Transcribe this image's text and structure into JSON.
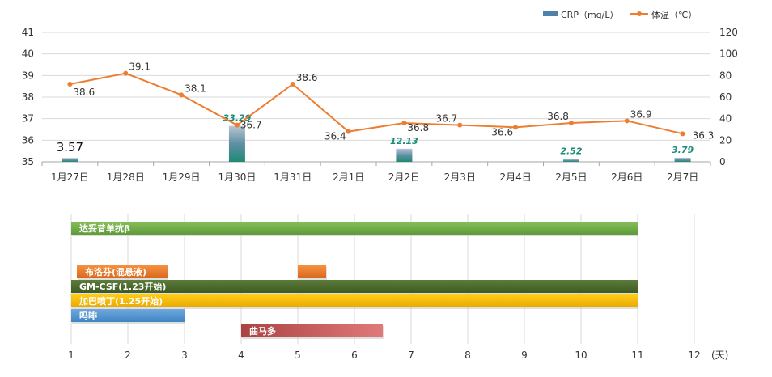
{
  "chart_data": [
    {
      "type": "bar+line",
      "legend": {
        "placement": "top-right",
        "items": [
          {
            "name": "CRP（mg/L）",
            "kind": "bar"
          },
          {
            "name": "体温（℃）",
            "kind": "line"
          }
        ]
      },
      "categories": [
        "1月27日",
        "1月28日",
        "1月29日",
        "1月30日",
        "1月31日",
        "2月1日",
        "2月2日",
        "2月3日",
        "2月4日",
        "2月5日",
        "2月6日",
        "2月7日"
      ],
      "series": [
        {
          "name": "体温（℃）",
          "type": "line",
          "axis": "left",
          "color": "#ed7d31",
          "values": [
            38.6,
            39.1,
            38.1,
            36.7,
            38.6,
            36.4,
            36.8,
            36.7,
            36.6,
            36.8,
            36.9,
            36.3
          ]
        },
        {
          "name": "CRP（mg/L）",
          "type": "bar",
          "axis": "right",
          "color": "#4f81a9",
          "values": [
            3.57,
            null,
            null,
            33.29,
            null,
            null,
            12.13,
            null,
            null,
            2.52,
            null,
            3.79
          ]
        }
      ],
      "left_axis": {
        "ylim": [
          35,
          41
        ],
        "ticks": [
          "35",
          "36",
          "37",
          "38",
          "39",
          "40",
          "41"
        ]
      },
      "right_axis": {
        "ylim": [
          0,
          120
        ],
        "ticks": [
          "0",
          "20",
          "40",
          "60",
          "80",
          "100",
          "120"
        ]
      },
      "temp_labels": [
        "38.6",
        "39.1",
        "38.1",
        "36.7",
        "38.6",
        "36.4",
        "36.8",
        "36.7",
        "36.6",
        "36.8",
        "36.9",
        "36.3"
      ],
      "crp_labels": [
        "3.57",
        "",
        "",
        "33.29",
        "",
        "",
        "12.13",
        "",
        "",
        "2.52",
        "",
        "3.79"
      ],
      "grid": true
    },
    {
      "type": "gantt",
      "x_axis": {
        "min": 1,
        "max": 12,
        "ticks": [
          "1",
          "2",
          "3",
          "4",
          "5",
          "6",
          "7",
          "8",
          "9",
          "10",
          "11",
          "12"
        ],
        "unit": "(天)"
      },
      "tasks": [
        {
          "label": "达妥昔单抗β",
          "start": 1,
          "end": 11,
          "color": "#70ad47"
        },
        {
          "label": "布洛芬(混悬液)",
          "start": 1.1,
          "end": 2.7,
          "color": "#ed7d31"
        },
        {
          "label": "",
          "start": 5,
          "end": 5.5,
          "color": "#ed7d31"
        },
        {
          "label": "GM-CSF(1.23开始)",
          "start": 1,
          "end": 11,
          "color": "#4a6b2c"
        },
        {
          "label": "加巴喷丁(1.25开始)",
          "start": 1,
          "end": 11,
          "color": "#ffc000"
        },
        {
          "label": "吗啡",
          "start": 1,
          "end": 3,
          "color": "#5b9bd5"
        },
        {
          "label": "曲马多",
          "start": 4.0,
          "end": 6.5,
          "color": "#c0504d"
        }
      ],
      "grid": true
    }
  ]
}
